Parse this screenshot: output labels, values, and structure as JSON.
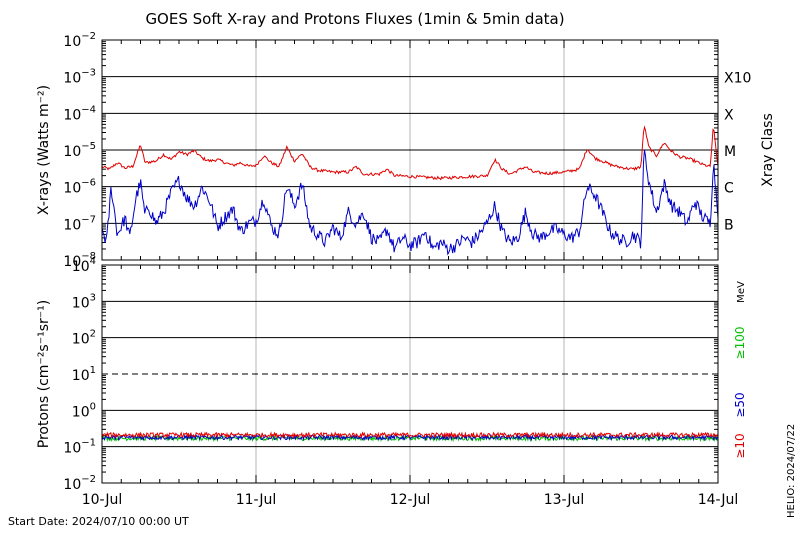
{
  "title": "GOES Soft X-ray and Protons Fluxes   (1min & 5min data)",
  "footer": {
    "start_date": "Start Date: 2024/07/10 00:00 UT",
    "credit": "HELIO: 2024/07/22"
  },
  "colors": {
    "red": "#e00000",
    "blue": "#0000c8",
    "green": "#00c000",
    "grid": "#b4b4b4"
  },
  "chart_data": [
    {
      "type": "line",
      "name": "xray",
      "ylabel": "X-rays (Watts m⁻²)",
      "ylabel_right": "Xray Class",
      "y_scale": "log",
      "ylim": [
        1e-08,
        0.01
      ],
      "xlim": [
        0,
        4
      ],
      "x_ticks": [
        "10-Jul",
        "11-Jul",
        "12-Jul",
        "13-Jul",
        "14-Jul"
      ],
      "y_tick_labels": [
        {
          "base": "10",
          "exp": "−8",
          "value": 1e-08
        },
        {
          "base": "10",
          "exp": "−7",
          "value": 1e-07
        },
        {
          "base": "10",
          "exp": "−6",
          "value": 1e-06
        },
        {
          "base": "10",
          "exp": "−5",
          "value": 1e-05
        },
        {
          "base": "10",
          "exp": "−4",
          "value": 0.0001
        },
        {
          "base": "10",
          "exp": "−3",
          "value": 0.001
        },
        {
          "base": "10",
          "exp": "−2",
          "value": 0.01
        }
      ],
      "class_labels": [
        {
          "label": "B",
          "value": 1e-07
        },
        {
          "label": "C",
          "value": 1e-06
        },
        {
          "label": "M",
          "value": 1e-05
        },
        {
          "label": "X",
          "value": 0.0001
        },
        {
          "label": "X10",
          "value": 0.001
        }
      ],
      "series": [
        {
          "color": "#e00000",
          "points": [
            [
              0.0,
              3.5e-06
            ],
            [
              0.05,
              3e-06
            ],
            [
              0.1,
              4.5e-06
            ],
            [
              0.15,
              3.2e-06
            ],
            [
              0.2,
              3.6e-06
            ],
            [
              0.25,
              1.4e-05
            ],
            [
              0.28,
              4.5e-06
            ],
            [
              0.35,
              5e-06
            ],
            [
              0.4,
              7.5e-06
            ],
            [
              0.45,
              5.5e-06
            ],
            [
              0.5,
              9e-06
            ],
            [
              0.55,
              7.5e-06
            ],
            [
              0.6,
              9.5e-06
            ],
            [
              0.65,
              6e-06
            ],
            [
              0.7,
              5e-06
            ],
            [
              0.75,
              5.5e-06
            ],
            [
              0.8,
              4.5e-06
            ],
            [
              0.85,
              3.8e-06
            ],
            [
              0.9,
              4.5e-06
            ],
            [
              0.95,
              3.6e-06
            ],
            [
              1.0,
              3.8e-06
            ],
            [
              1.05,
              7e-06
            ],
            [
              1.1,
              4.5e-06
            ],
            [
              1.15,
              3.5e-06
            ],
            [
              1.2,
              1.2e-05
            ],
            [
              1.25,
              5e-06
            ],
            [
              1.3,
              8e-06
            ],
            [
              1.35,
              3.5e-06
            ],
            [
              1.4,
              2.8e-06
            ],
            [
              1.5,
              2.5e-06
            ],
            [
              1.6,
              2.5e-06
            ],
            [
              1.65,
              3.5e-06
            ],
            [
              1.7,
              2.2e-06
            ],
            [
              1.8,
              2.2e-06
            ],
            [
              1.85,
              3e-06
            ],
            [
              1.9,
              2e-06
            ],
            [
              2.0,
              1.9e-06
            ],
            [
              2.1,
              1.8e-06
            ],
            [
              2.2,
              1.7e-06
            ],
            [
              2.3,
              1.8e-06
            ],
            [
              2.4,
              1.9e-06
            ],
            [
              2.5,
              2e-06
            ],
            [
              2.55,
              5.5e-06
            ],
            [
              2.6,
              3e-06
            ],
            [
              2.65,
              2.2e-06
            ],
            [
              2.75,
              3.5e-06
            ],
            [
              2.8,
              2.5e-06
            ],
            [
              2.9,
              2.3e-06
            ],
            [
              3.0,
              2.5e-06
            ],
            [
              3.1,
              3e-06
            ],
            [
              3.15,
              1.1e-05
            ],
            [
              3.2,
              6e-06
            ],
            [
              3.25,
              5e-06
            ],
            [
              3.3,
              4e-06
            ],
            [
              3.35,
              3.5e-06
            ],
            [
              3.4,
              3.2e-06
            ],
            [
              3.45,
              3e-06
            ],
            [
              3.5,
              3.5e-06
            ],
            [
              3.52,
              5e-05
            ],
            [
              3.55,
              1.2e-05
            ],
            [
              3.6,
              7e-06
            ],
            [
              3.65,
              1.6e-05
            ],
            [
              3.7,
              9e-06
            ],
            [
              3.75,
              6.5e-06
            ],
            [
              3.8,
              6e-06
            ],
            [
              3.85,
              5e-06
            ],
            [
              3.9,
              4e-06
            ],
            [
              3.95,
              3.5e-06
            ],
            [
              3.97,
              4.5e-05
            ],
            [
              4.0,
              3.5e-06
            ]
          ]
        },
        {
          "color": "#0000c8",
          "points": [
            [
              0.0,
              7e-08
            ],
            [
              0.03,
              3e-08
            ],
            [
              0.06,
              1e-06
            ],
            [
              0.1,
              5e-08
            ],
            [
              0.15,
              1.4e-07
            ],
            [
              0.18,
              4e-08
            ],
            [
              0.22,
              5e-07
            ],
            [
              0.25,
              1.3e-06
            ],
            [
              0.28,
              1.5e-07
            ],
            [
              0.3,
              3e-07
            ],
            [
              0.35,
              1e-07
            ],
            [
              0.4,
              2e-07
            ],
            [
              0.45,
              7e-07
            ],
            [
              0.5,
              1.5e-06
            ],
            [
              0.55,
              5e-07
            ],
            [
              0.6,
              3e-07
            ],
            [
              0.65,
              1e-06
            ],
            [
              0.7,
              4e-07
            ],
            [
              0.75,
              8e-08
            ],
            [
              0.8,
              1.5e-07
            ],
            [
              0.85,
              2.5e-07
            ],
            [
              0.9,
              6e-08
            ],
            [
              0.95,
              1e-07
            ],
            [
              1.0,
              1.2e-07
            ],
            [
              1.05,
              5e-07
            ],
            [
              1.1,
              8e-08
            ],
            [
              1.15,
              5e-08
            ],
            [
              1.2,
              1e-06
            ],
            [
              1.25,
              3e-07
            ],
            [
              1.3,
              1.2e-06
            ],
            [
              1.35,
              8e-08
            ],
            [
              1.4,
              5e-08
            ],
            [
              1.45,
              3e-08
            ],
            [
              1.5,
              8e-08
            ],
            [
              1.55,
              4e-08
            ],
            [
              1.6,
              2e-07
            ],
            [
              1.65,
              1e-07
            ],
            [
              1.7,
              2e-07
            ],
            [
              1.75,
              4e-08
            ],
            [
              1.8,
              3e-08
            ],
            [
              1.85,
              7e-08
            ],
            [
              1.9,
              2e-08
            ],
            [
              1.95,
              4e-08
            ],
            [
              2.0,
              2.5e-08
            ],
            [
              2.05,
              3e-08
            ],
            [
              2.1,
              6e-08
            ],
            [
              2.15,
              2e-08
            ],
            [
              2.2,
              3e-08
            ],
            [
              2.25,
              2e-08
            ],
            [
              2.3,
              2.5e-08
            ],
            [
              2.35,
              4e-08
            ],
            [
              2.4,
              3e-08
            ],
            [
              2.45,
              5e-08
            ],
            [
              2.5,
              1e-07
            ],
            [
              2.55,
              3e-07
            ],
            [
              2.6,
              6e-08
            ],
            [
              2.65,
              3e-08
            ],
            [
              2.7,
              4e-08
            ],
            [
              2.75,
              2e-07
            ],
            [
              2.8,
              5e-08
            ],
            [
              2.85,
              4e-08
            ],
            [
              2.9,
              6e-08
            ],
            [
              2.95,
              7e-08
            ],
            [
              3.0,
              5e-08
            ],
            [
              3.05,
              4e-08
            ],
            [
              3.1,
              6e-08
            ],
            [
              3.15,
              1e-06
            ],
            [
              3.2,
              6e-07
            ],
            [
              3.25,
              2e-07
            ],
            [
              3.3,
              6e-08
            ],
            [
              3.35,
              4e-08
            ],
            [
              3.4,
              3e-08
            ],
            [
              3.45,
              5e-08
            ],
            [
              3.5,
              3e-08
            ],
            [
              3.52,
              1e-05
            ],
            [
              3.55,
              1.5e-06
            ],
            [
              3.6,
              2e-07
            ],
            [
              3.65,
              1.2e-06
            ],
            [
              3.7,
              3e-07
            ],
            [
              3.75,
              2e-07
            ],
            [
              3.8,
              1e-07
            ],
            [
              3.85,
              4e-07
            ],
            [
              3.9,
              1.5e-07
            ],
            [
              3.95,
              1e-07
            ],
            [
              3.97,
              5e-06
            ],
            [
              4.0,
              2e-07
            ]
          ]
        }
      ]
    },
    {
      "type": "line",
      "name": "protons",
      "ylabel": "Protons (cm⁻²s⁻¹sr⁻¹)",
      "y_scale": "log",
      "ylim": [
        0.01,
        10000
      ],
      "xlim": [
        0,
        4
      ],
      "x_ticks": [
        "10-Jul",
        "11-Jul",
        "12-Jul",
        "13-Jul",
        "14-Jul"
      ],
      "y_tick_labels": [
        {
          "base": "10",
          "exp": "−2",
          "value": 0.01
        },
        {
          "base": "10",
          "exp": "−1",
          "value": 0.1
        },
        {
          "base": "10",
          "exp": "0",
          "value": 1
        },
        {
          "base": "10",
          "exp": "1",
          "value": 10
        },
        {
          "base": "10",
          "exp": "2",
          "value": 100
        },
        {
          "base": "10",
          "exp": "3",
          "value": 1000
        },
        {
          "base": "10",
          "exp": "4",
          "value": 10000
        }
      ],
      "threshold": 10,
      "right_labels": {
        "unit": "MeV",
        "energies": [
          {
            "label": "≥100",
            "color": "#00c000"
          },
          {
            "label": "≥50",
            "color": "#0000c8"
          },
          {
            "label": "≥10",
            "color": "#e00000"
          }
        ]
      },
      "series": [
        {
          "color": "#00c000",
          "level": 0.17
        },
        {
          "color": "#0000c8",
          "level": 0.18
        },
        {
          "color": "#e00000",
          "level": 0.21
        }
      ]
    }
  ]
}
